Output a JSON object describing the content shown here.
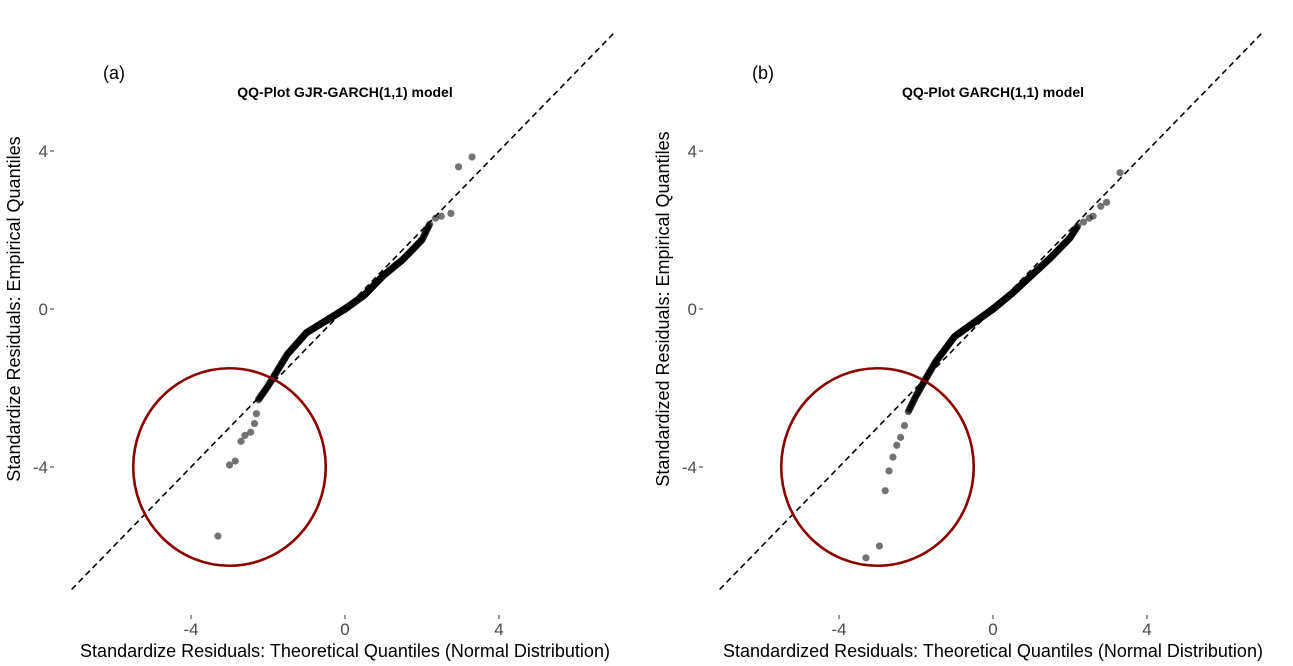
{
  "chart_data": [
    {
      "type": "scatter",
      "subtype": "qq-plot",
      "panel_label": "(a)",
      "title": "QQ-Plot GJR-GARCH(1,1) model",
      "xlabel": "Standardize Residuals: Theoretical Quantiles (Normal Distribution)",
      "ylabel": "Standardize Residuals: Empirical Quantiles",
      "x_ticks": [
        -4,
        0,
        4
      ],
      "y_ticks": [
        -4,
        0,
        4
      ],
      "x_tick_labels": [
        "-4",
        "0",
        "4"
      ],
      "y_tick_labels": [
        "-4",
        "0",
        "4"
      ],
      "xlim": [
        -7.1,
        7.0
      ],
      "ylim": [
        -7.2,
        7.0
      ],
      "grid": false,
      "reference_line": {
        "slope": 1,
        "intercept": 0,
        "style": "dashed",
        "color": "#000000"
      },
      "highlight_circle": {
        "center": [
          -3.0,
          -4.0
        ],
        "radius_x": 2.5,
        "radius_y": 2.5,
        "color": "#8b0000"
      },
      "point_color": "#000000",
      "point_opacity": 0.55,
      "body_points": {
        "x_range": [
          -2.25,
          2.2
        ],
        "y_at_x": [
          [
            -2.25,
            -2.3
          ],
          [
            -2.0,
            -1.95
          ],
          [
            -1.5,
            -1.15
          ],
          [
            -1.0,
            -0.6
          ],
          [
            -0.5,
            -0.3
          ],
          [
            0.0,
            0.0
          ],
          [
            0.5,
            0.35
          ],
          [
            1.0,
            0.85
          ],
          [
            1.5,
            1.25
          ],
          [
            2.0,
            1.75
          ],
          [
            2.2,
            2.15
          ]
        ]
      },
      "tail_points": [
        {
          "x": -3.3,
          "y": -5.75
        },
        {
          "x": -3.0,
          "y": -3.95
        },
        {
          "x": -2.85,
          "y": -3.85
        },
        {
          "x": -2.7,
          "y": -3.35
        },
        {
          "x": -2.6,
          "y": -3.2
        },
        {
          "x": -2.45,
          "y": -3.12
        },
        {
          "x": -2.35,
          "y": -2.9
        },
        {
          "x": -2.3,
          "y": -2.65
        },
        {
          "x": 2.35,
          "y": 2.3
        },
        {
          "x": 2.5,
          "y": 2.35
        },
        {
          "x": 2.75,
          "y": 2.42
        },
        {
          "x": 2.95,
          "y": 3.6
        },
        {
          "x": 3.3,
          "y": 3.85
        }
      ]
    },
    {
      "type": "scatter",
      "subtype": "qq-plot",
      "panel_label": "(b)",
      "title": "QQ-Plot GARCH(1,1) model",
      "xlabel": "Standardized Residuals: Theoretical Quantiles (Normal Distribution)",
      "ylabel": "Standardized Residuals: Empirical Quantiles",
      "x_ticks": [
        -4,
        0,
        4
      ],
      "y_ticks": [
        -4,
        0,
        4
      ],
      "x_tick_labels": [
        "-4",
        "0",
        "4"
      ],
      "y_tick_labels": [
        "-4",
        "0",
        "4"
      ],
      "xlim": [
        -7.1,
        7.0
      ],
      "ylim": [
        -7.2,
        7.0
      ],
      "grid": false,
      "reference_line": {
        "slope": 1,
        "intercept": 0,
        "style": "dashed",
        "color": "#000000"
      },
      "highlight_circle": {
        "center": [
          -3.0,
          -4.0
        ],
        "radius_x": 2.5,
        "radius_y": 2.5,
        "color": "#8b0000"
      },
      "point_color": "#000000",
      "point_opacity": 0.55,
      "body_points": {
        "x_range": [
          -2.2,
          2.2
        ],
        "y_at_x": [
          [
            -2.2,
            -2.6
          ],
          [
            -2.0,
            -2.2
          ],
          [
            -1.5,
            -1.35
          ],
          [
            -1.0,
            -0.7
          ],
          [
            -0.5,
            -0.35
          ],
          [
            0.0,
            0.0
          ],
          [
            0.5,
            0.4
          ],
          [
            1.0,
            0.85
          ],
          [
            1.5,
            1.3
          ],
          [
            2.0,
            1.8
          ],
          [
            2.2,
            2.1
          ]
        ]
      },
      "tail_points": [
        {
          "x": -3.3,
          "y": -6.3
        },
        {
          "x": -2.95,
          "y": -6.0
        },
        {
          "x": -2.8,
          "y": -4.6
        },
        {
          "x": -2.7,
          "y": -4.1
        },
        {
          "x": -2.6,
          "y": -3.75
        },
        {
          "x": -2.5,
          "y": -3.45
        },
        {
          "x": -2.4,
          "y": -3.25
        },
        {
          "x": -2.3,
          "y": -2.95
        },
        {
          "x": 2.35,
          "y": 2.2
        },
        {
          "x": 2.5,
          "y": 2.3
        },
        {
          "x": 2.6,
          "y": 2.35
        },
        {
          "x": 2.8,
          "y": 2.6
        },
        {
          "x": 2.95,
          "y": 2.7
        },
        {
          "x": 3.3,
          "y": 3.45
        }
      ]
    }
  ]
}
